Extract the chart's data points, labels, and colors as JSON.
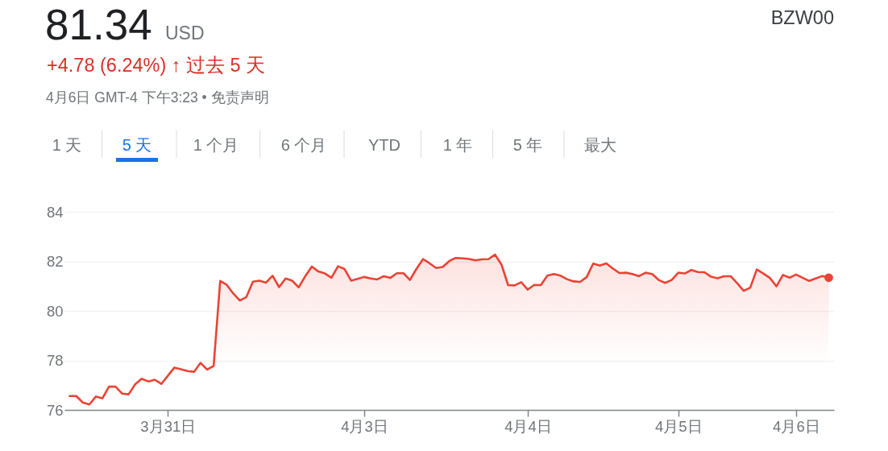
{
  "chart_data": {
    "type": "area",
    "title": "81.34",
    "subtitle": "+4.78 (6.24%) ↑ 过去 5 天",
    "annotations": [
      "USD",
      "4月6日 GMT-4 下午3:23 • 免责声明",
      "BZW00",
      "1 天",
      "5 天",
      "1 个月",
      "6 个月",
      "YTD",
      "1 年",
      "5 年",
      "最大"
    ],
    "categories": [
      null,
      null,
      null,
      null,
      null,
      null,
      null,
      null,
      null,
      null,
      null,
      null,
      null,
      null,
      null,
      "3月31日",
      null,
      null,
      null,
      null,
      null,
      null,
      null,
      null,
      null,
      null,
      null,
      null,
      null,
      null,
      null,
      null,
      null,
      null,
      null,
      null,
      null,
      null,
      null,
      null,
      null,
      null,
      null,
      null,
      null,
      "4月3日",
      null,
      null,
      null,
      null,
      null,
      null,
      null,
      null,
      null,
      null,
      null,
      null,
      null,
      null,
      null,
      null,
      null,
      null,
      null,
      null,
      null,
      null,
      null,
      null,
      "4月4日",
      null,
      null,
      null,
      null,
      null,
      null,
      null,
      null,
      null,
      null,
      null,
      null,
      null,
      null,
      null,
      null,
      null,
      null,
      null,
      null,
      null,
      null,
      "4月5日",
      null,
      null,
      null,
      null,
      null,
      null,
      null,
      null,
      null,
      null,
      null,
      null,
      null,
      null,
      null,
      null,
      null,
      "4月6日",
      null,
      null,
      null,
      null,
      null
    ],
    "ylim": [
      76,
      84
    ],
    "yticks": [
      76,
      78,
      80,
      82,
      84
    ],
    "grid": "y",
    "series": [
      {
        "color": "#ea4335",
        "values": [
          76.56,
          76.56,
          76.3,
          76.22,
          76.54,
          76.47,
          76.94,
          76.94,
          76.66,
          76.63,
          77.03,
          77.26,
          77.15,
          77.22,
          77.05,
          77.38,
          77.71,
          77.64,
          77.57,
          77.54,
          77.9,
          77.63,
          77.78,
          81.21,
          81.05,
          80.7,
          80.42,
          80.56,
          81.18,
          81.22,
          81.14,
          81.42,
          80.96,
          81.31,
          81.22,
          80.95,
          81.4,
          81.79,
          81.59,
          81.51,
          81.34,
          81.8,
          81.69,
          81.22,
          81.29,
          81.37,
          81.31,
          81.27,
          81.4,
          81.33,
          81.52,
          81.52,
          81.25,
          81.7,
          82.09,
          81.92,
          81.73,
          81.77,
          82.01,
          82.14,
          82.12,
          82.1,
          82.04,
          82.08,
          82.09,
          82.27,
          81.86,
          81.04,
          81.03,
          81.16,
          80.86,
          81.05,
          81.04,
          81.42,
          81.49,
          81.42,
          81.28,
          81.19,
          81.17,
          81.36,
          81.91,
          81.83,
          81.92,
          81.71,
          81.53,
          81.54,
          81.49,
          81.4,
          81.54,
          81.49,
          81.25,
          81.13,
          81.25,
          81.54,
          81.51,
          81.65,
          81.57,
          81.56,
          81.38,
          81.32,
          81.4,
          81.4,
          81.12,
          80.81,
          80.94,
          81.67,
          81.51,
          81.33,
          80.99,
          81.45,
          81.34,
          81.47,
          81.34,
          81.21,
          81.31,
          81.41,
          81.34
        ]
      },
      {
        "type": "scatter",
        "color": "#ea4335",
        "values": [
          null,
          null,
          null,
          null,
          null,
          null,
          null,
          null,
          null,
          null,
          null,
          null,
          null,
          null,
          null,
          null,
          null,
          null,
          null,
          null,
          null,
          null,
          null,
          null,
          null,
          null,
          null,
          null,
          null,
          null,
          null,
          null,
          null,
          null,
          null,
          null,
          null,
          null,
          null,
          null,
          null,
          null,
          null,
          null,
          null,
          null,
          null,
          null,
          null,
          null,
          null,
          null,
          null,
          null,
          null,
          null,
          null,
          null,
          null,
          null,
          null,
          null,
          null,
          null,
          null,
          null,
          null,
          null,
          null,
          null,
          null,
          null,
          null,
          null,
          null,
          null,
          null,
          null,
          null,
          null,
          null,
          null,
          null,
          null,
          null,
          null,
          null,
          null,
          null,
          null,
          null,
          null,
          null,
          null,
          null,
          null,
          null,
          null,
          null,
          null,
          null,
          null,
          null,
          null,
          null,
          null,
          null,
          null,
          null,
          null,
          null,
          null,
          null,
          null,
          null,
          null,
          81.34
        ]
      }
    ]
  }
}
